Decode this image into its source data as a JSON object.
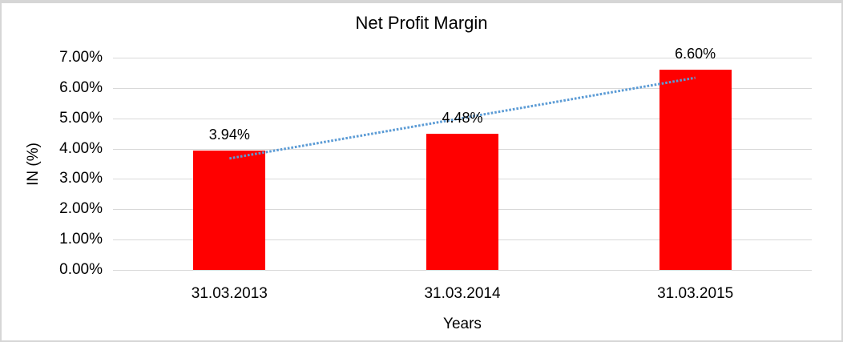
{
  "chart_data": {
    "type": "bar",
    "title": "Net Profit Margin",
    "xlabel": "Years",
    "ylabel": "IN (%)",
    "categories": [
      "31.03.2013",
      "31.03.2014",
      "31.03.2015"
    ],
    "values": [
      3.94,
      4.48,
      6.6
    ],
    "value_labels": [
      "3.94%",
      "4.48%",
      "6.60%"
    ],
    "y_ticks": [
      "7.00%",
      "6.00%",
      "5.00%",
      "4.00%",
      "3.00%",
      "2.00%",
      "1.00%",
      "0.00%"
    ],
    "ylim": [
      0,
      7
    ],
    "grid": true,
    "legend": "none",
    "bar_color": "#ff0000",
    "gridline_color": "#d9d9d9",
    "text_color": "#000000",
    "trendline": {
      "type": "linear",
      "style": "dotted",
      "color": "#5b9bd5"
    }
  }
}
